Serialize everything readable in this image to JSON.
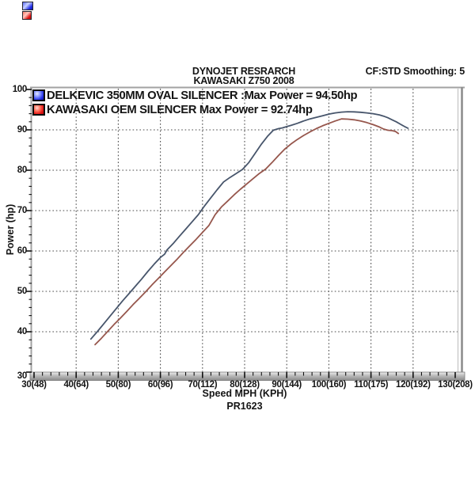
{
  "header": {
    "line1": "DYNOJET RESRARCH",
    "line2": "KAWASAKI Z750 2008",
    "smoothing": "CF:STD Smoothing: 5"
  },
  "legend": [
    {
      "key_color": "#2330e6",
      "label": "DELKEVIC 350MM OVAL SILENCER :Max Power = 94.50hp"
    },
    {
      "key_color": "#e01414",
      "label": "KAWASAKI OEM SILENCER Max Power = 92.74hp"
    }
  ],
  "footer": {
    "xlabel": "Speed MPH (KPH)",
    "run_id": "PR1623"
  },
  "colors": {
    "delkevic_curve": "#47556b",
    "oem_curve": "#96564c",
    "gridline": "#4a4a4a",
    "frame": "#a2a2a2",
    "band_light": "#ececec",
    "band_dark": "#8a8a8a",
    "tick": "#111111"
  },
  "chart_data": {
    "type": "line",
    "title_lines": [
      "DYNOJET RESRARCH",
      "KAWASAKI Z750 2008"
    ],
    "xlabel": "Speed MPH (KPH)",
    "ylabel": "Power (hp)",
    "xlim": [
      30,
      130
    ],
    "ylim": [
      30,
      100
    ],
    "grid": "dotted gridlines every 10 units on both axes",
    "minor_tick_step": 2,
    "legend_position": "top-left inside plot",
    "x_ticks": [
      {
        "v": 30,
        "label": "30(48)"
      },
      {
        "v": 40,
        "label": "40(64)"
      },
      {
        "v": 50,
        "label": "50(80)"
      },
      {
        "v": 60,
        "label": "60(96)"
      },
      {
        "v": 70,
        "label": "70(112)"
      },
      {
        "v": 80,
        "label": "80(128)"
      },
      {
        "v": 90,
        "label": "90(144)"
      },
      {
        "v": 100,
        "label": "100(160)"
      },
      {
        "v": 110,
        "label": "110(175)"
      },
      {
        "v": 120,
        "label": "120(192)"
      },
      {
        "v": 130,
        "label": "130(208)"
      }
    ],
    "y_ticks": [
      {
        "v": 100,
        "label": "100"
      },
      {
        "v": 90,
        "label": "90"
      },
      {
        "v": 80,
        "label": "80"
      },
      {
        "v": 70,
        "label": "70"
      },
      {
        "v": 60,
        "label": "60"
      },
      {
        "v": 50,
        "label": "50"
      },
      {
        "v": 40,
        "label": "40"
      },
      {
        "v": 30,
        "label": "30"
      }
    ],
    "series": [
      {
        "name": "DELKEVIC 350MM OVAL SILENCER",
        "max_power": "94.50hp",
        "color": "#47556b",
        "points": [
          [
            43.5,
            38.2
          ],
          [
            45,
            40.0
          ],
          [
            46.5,
            41.9
          ],
          [
            48,
            43.8
          ],
          [
            49.5,
            45.7
          ],
          [
            51,
            47.6
          ],
          [
            52.5,
            49.4
          ],
          [
            54,
            51.2
          ],
          [
            55.5,
            53.0
          ],
          [
            57,
            54.9
          ],
          [
            58.5,
            56.7
          ],
          [
            60,
            58.4
          ],
          [
            61,
            59.2
          ],
          [
            61.6,
            60.3
          ],
          [
            63,
            61.8
          ],
          [
            64.5,
            63.6
          ],
          [
            66,
            65.4
          ],
          [
            67.5,
            67.2
          ],
          [
            69,
            69.0
          ],
          [
            70.5,
            71.2
          ],
          [
            72,
            73.2
          ],
          [
            73.5,
            75.2
          ],
          [
            75,
            77.1
          ],
          [
            76.5,
            78.2
          ],
          [
            78,
            79.2
          ],
          [
            79.5,
            80.2
          ],
          [
            81,
            81.9
          ],
          [
            82.5,
            84.2
          ],
          [
            84,
            86.5
          ],
          [
            85.5,
            88.5
          ],
          [
            86.8,
            89.9
          ],
          [
            88,
            90.3
          ],
          [
            89,
            90.5
          ],
          [
            90,
            90.8
          ],
          [
            91,
            91.1
          ],
          [
            92.5,
            91.6
          ],
          [
            94,
            92.2
          ],
          [
            95.5,
            92.7
          ],
          [
            97,
            93.1
          ],
          [
            98.5,
            93.5
          ],
          [
            100,
            93.9
          ],
          [
            101.5,
            94.2
          ],
          [
            103,
            94.4
          ],
          [
            104.5,
            94.5
          ],
          [
            106,
            94.45
          ],
          [
            107.5,
            94.35
          ],
          [
            109,
            94.2
          ],
          [
            110.5,
            94.0
          ],
          [
            112,
            93.7
          ],
          [
            113,
            93.4
          ],
          [
            114,
            93.0
          ],
          [
            115,
            92.5
          ],
          [
            116,
            92.0
          ],
          [
            117,
            91.4
          ],
          [
            118,
            90.8
          ],
          [
            118.8,
            90.4
          ]
        ]
      },
      {
        "name": "KAWASAKI OEM SILENCER",
        "max_power": "92.74hp",
        "color": "#96564c",
        "points": [
          [
            44.5,
            36.8
          ],
          [
            46,
            38.4
          ],
          [
            47.5,
            40.1
          ],
          [
            49,
            41.8
          ],
          [
            50.5,
            43.4
          ],
          [
            52,
            45.0
          ],
          [
            53.5,
            46.7
          ],
          [
            55,
            48.3
          ],
          [
            56.5,
            49.9
          ],
          [
            58,
            51.6
          ],
          [
            59.5,
            53.2
          ],
          [
            61,
            54.8
          ],
          [
            62.5,
            56.4
          ],
          [
            64,
            58.0
          ],
          [
            65.5,
            59.7
          ],
          [
            67,
            61.3
          ],
          [
            68.5,
            62.9
          ],
          [
            70,
            64.6
          ],
          [
            71.5,
            66.3
          ],
          [
            73,
            69.0
          ],
          [
            74.5,
            70.9
          ],
          [
            76,
            72.4
          ],
          [
            77.5,
            73.9
          ],
          [
            79,
            75.3
          ],
          [
            80.5,
            76.6
          ],
          [
            82,
            77.9
          ],
          [
            83.5,
            79.2
          ],
          [
            85,
            80.3
          ],
          [
            86.5,
            81.9
          ],
          [
            88,
            83.6
          ],
          [
            89.5,
            85.2
          ],
          [
            91,
            86.5
          ],
          [
            92.5,
            87.6
          ],
          [
            94,
            88.6
          ],
          [
            95.5,
            89.5
          ],
          [
            97,
            90.3
          ],
          [
            98.5,
            91.0
          ],
          [
            100,
            91.6
          ],
          [
            101.5,
            92.2
          ],
          [
            103,
            92.7
          ],
          [
            104.5,
            92.65
          ],
          [
            106,
            92.5
          ],
          [
            107.5,
            92.2
          ],
          [
            109,
            91.8
          ],
          [
            110.5,
            91.3
          ],
          [
            112,
            90.7
          ],
          [
            113,
            90.2
          ],
          [
            114,
            89.9
          ],
          [
            115,
            89.8
          ],
          [
            115.8,
            89.6
          ],
          [
            116.5,
            89.1
          ]
        ]
      }
    ]
  }
}
